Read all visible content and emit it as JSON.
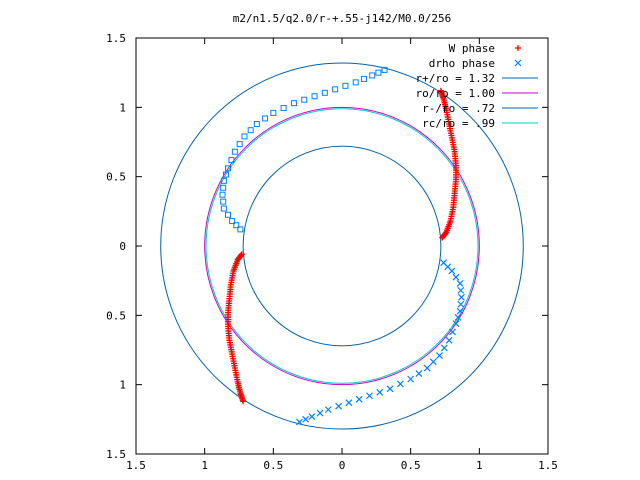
{
  "chart_data": {
    "type": "scatter",
    "title": "m2/n1.5/q2.0/r-+.55-j142/M0.0/256",
    "xlabel": "",
    "ylabel": "",
    "xlim": [
      -1.5,
      1.5
    ],
    "ylim": [
      -1.5,
      1.5
    ],
    "x_ticks": [
      -1.5,
      -1,
      -0.5,
      0,
      0.5,
      1,
      1.5
    ],
    "x_tick_labels": [
      "1.5",
      "1",
      "0.5",
      "0",
      "0.5",
      "1",
      "1.5"
    ],
    "y_ticks": [
      1.5,
      1,
      0.5,
      0,
      -0.5,
      -1,
      -1.5
    ],
    "y_tick_labels": [
      "1.5",
      "1",
      "0.5",
      "0",
      "0.5",
      "1",
      "1.5"
    ],
    "grid": false,
    "legend_position": "top-right",
    "colors": {
      "w_phase": "#ff0000",
      "drho_phase": "#0080ff",
      "r_plus": "#0060ad",
      "r_o": "#cc00cc",
      "r_minus": "#0060ad",
      "r_c": "#00cccc",
      "border": "#000000"
    },
    "circles": [
      {
        "name": "r+/ro = 1.32",
        "radius": 1.32
      },
      {
        "name": "ro/ro = 1.00",
        "radius": 1.0
      },
      {
        "name": "r-/ro = .72",
        "radius": 0.72
      },
      {
        "name": "rc/ro = .99",
        "radius": 0.99
      }
    ],
    "series": [
      {
        "name": "W phase",
        "marker": "plus",
        "arms": [
          [
            [
              0.73,
              0.06
            ],
            [
              0.76,
              0.1
            ],
            [
              0.79,
              0.18
            ],
            [
              0.81,
              0.28
            ],
            [
              0.82,
              0.38
            ],
            [
              0.83,
              0.48
            ],
            [
              0.83,
              0.58
            ],
            [
              0.82,
              0.68
            ],
            [
              0.8,
              0.78
            ],
            [
              0.78,
              0.88
            ],
            [
              0.76,
              0.98
            ],
            [
              0.74,
              1.06
            ],
            [
              0.72,
              1.12
            ]
          ],
          [
            [
              -0.73,
              -0.06
            ],
            [
              -0.76,
              -0.1
            ],
            [
              -0.79,
              -0.18
            ],
            [
              -0.81,
              -0.28
            ],
            [
              -0.82,
              -0.38
            ],
            [
              -0.83,
              -0.48
            ],
            [
              -0.83,
              -0.58
            ],
            [
              -0.82,
              -0.68
            ],
            [
              -0.8,
              -0.78
            ],
            [
              -0.78,
              -0.88
            ],
            [
              -0.76,
              -0.98
            ],
            [
              -0.74,
              -1.06
            ],
            [
              -0.72,
              -1.12
            ]
          ]
        ]
      },
      {
        "name": "drho phase",
        "marker": "square",
        "arms": [
          [
            [
              -0.74,
              0.12
            ],
            [
              -0.8,
              0.18
            ],
            [
              -0.86,
              0.27
            ],
            [
              -0.87,
              0.37
            ],
            [
              -0.86,
              0.47
            ],
            [
              -0.83,
              0.56
            ],
            [
              -0.78,
              0.68
            ],
            [
              -0.71,
              0.79
            ],
            [
              -0.62,
              0.88
            ],
            [
              -0.5,
              0.96
            ],
            [
              -0.35,
              1.03
            ],
            [
              -0.2,
              1.08
            ],
            [
              -0.05,
              1.13
            ],
            [
              0.1,
              1.18
            ],
            [
              0.22,
              1.23
            ],
            [
              0.31,
              1.27
            ]
          ]
        ]
      },
      {
        "name": "drho phase",
        "marker": "cross",
        "arms": [
          [
            [
              0.74,
              -0.12
            ],
            [
              0.8,
              -0.18
            ],
            [
              0.86,
              -0.27
            ],
            [
              0.87,
              -0.37
            ],
            [
              0.86,
              -0.47
            ],
            [
              0.83,
              -0.56
            ],
            [
              0.78,
              -0.68
            ],
            [
              0.71,
              -0.79
            ],
            [
              0.62,
              -0.88
            ],
            [
              0.5,
              -0.96
            ],
            [
              0.35,
              -1.03
            ],
            [
              0.2,
              -1.08
            ],
            [
              0.05,
              -1.13
            ],
            [
              -0.1,
              -1.18
            ],
            [
              -0.22,
              -1.23
            ],
            [
              -0.31,
              -1.27
            ]
          ]
        ]
      }
    ],
    "legend": [
      {
        "label": "W phase",
        "key": "plus",
        "color": "#ff0000"
      },
      {
        "label": "drho phase",
        "key": "cross",
        "color": "#0080ff"
      },
      {
        "label": "r+/ro = 1.32",
        "key": "line",
        "color": "#0060ad"
      },
      {
        "label": "ro/ro = 1.00",
        "key": "line",
        "color": "#cc00cc"
      },
      {
        "label": "r-/ro = .72",
        "key": "line",
        "color": "#0060ad"
      },
      {
        "label": "rc/ro = .99",
        "key": "line",
        "color": "#00cccc"
      }
    ]
  }
}
